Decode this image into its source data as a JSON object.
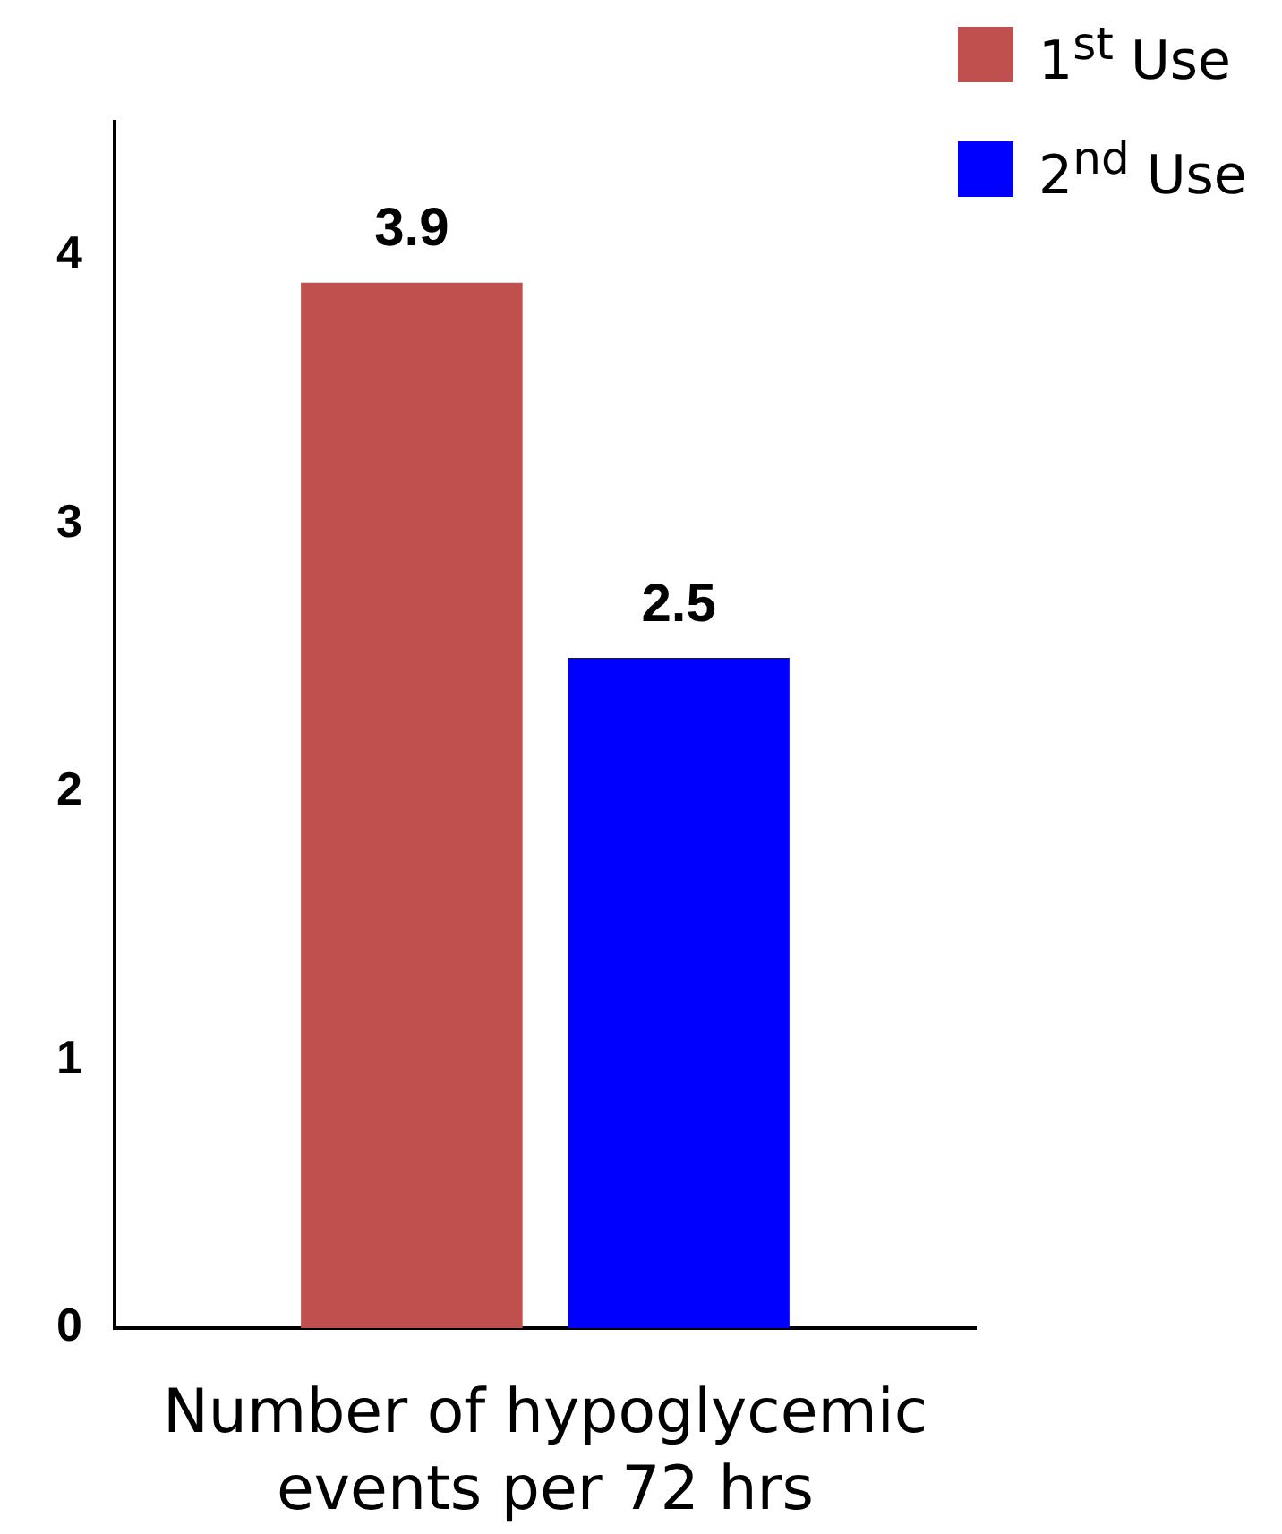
{
  "chart_data": {
    "type": "bar",
    "xlabel": "Number of hypoglycemic events per 72 hrs",
    "categories": [
      null
    ],
    "series": [
      {
        "name": "1$^{st}$ Use",
        "color": "#c0504d",
        "values": [
          3.9
        ]
      },
      {
        "name": "2$^{nd}$ Use",
        "color": "#0000ff",
        "values": [
          2.5
        ]
      }
    ],
    "ylim": [
      0,
      4.5
    ],
    "yticks": [
      0,
      1,
      2,
      3,
      4
    ],
    "grid": false,
    "legend": "top right",
    "data_labels": true
  }
}
